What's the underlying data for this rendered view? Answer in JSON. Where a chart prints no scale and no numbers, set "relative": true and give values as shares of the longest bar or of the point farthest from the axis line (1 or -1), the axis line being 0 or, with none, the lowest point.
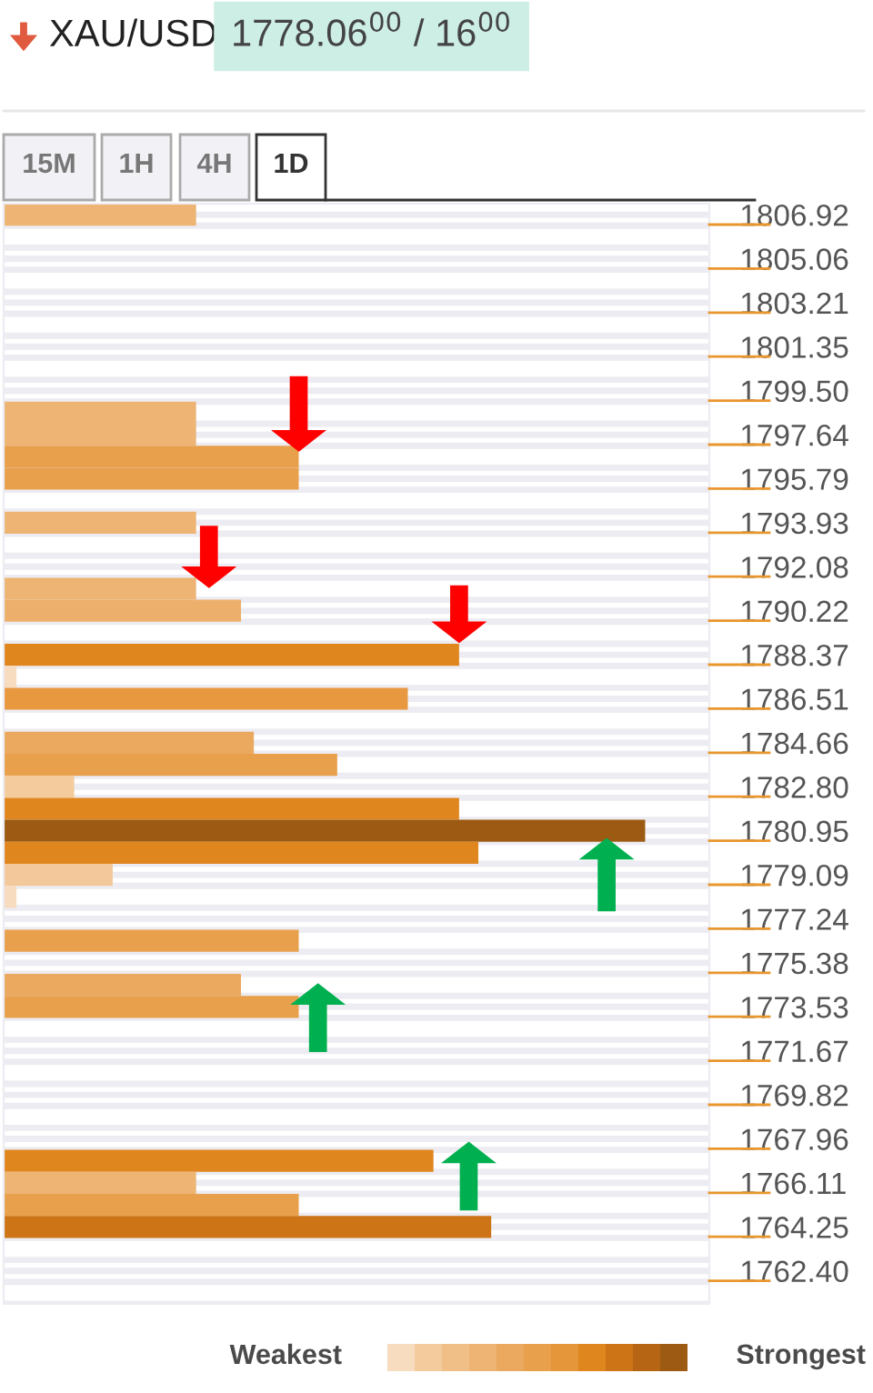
{
  "chart_data": {
    "type": "bar",
    "orientation": "horizontal",
    "relative": true,
    "title": "XAU/USD",
    "subtitle": "1778.06$^{00}$ / 16$^{00}$",
    "categories": [
      "1806.92",
      null,
      "1805.06",
      null,
      "1803.21",
      null,
      "1801.35",
      null,
      "1799.50",
      null,
      "1797.64",
      null,
      "1795.79",
      null,
      "1793.93",
      null,
      "1792.08",
      null,
      "1790.22",
      null,
      "1788.37",
      null,
      "1786.51",
      null,
      "1784.66",
      null,
      "1782.80",
      null,
      "1780.95",
      null,
      "1779.09",
      null,
      "1777.24",
      null,
      "1775.38",
      null,
      "1773.53",
      null,
      "1771.67",
      null,
      "1769.82",
      null,
      "1767.96",
      null,
      "1766.11",
      null,
      "1764.25",
      null,
      "1762.40",
      null
    ],
    "values": [
      0.3,
      null,
      null,
      null,
      null,
      null,
      null,
      null,
      null,
      0.3,
      0.3,
      0.46,
      0.46,
      null,
      0.3,
      null,
      null,
      0.3,
      0.37,
      null,
      0.71,
      0.02,
      0.63,
      null,
      0.39,
      0.52,
      0.11,
      0.71,
      1,
      0.74,
      0.17,
      0.02,
      null,
      0.46,
      null,
      0.37,
      0.46,
      null,
      null,
      null,
      null,
      null,
      null,
      0.67,
      0.3,
      0.46,
      0.76,
      null,
      null,
      null
    ],
    "colors": [
      "#edb473",
      null,
      null,
      null,
      null,
      null,
      null,
      null,
      null,
      "#edb473",
      "#edb473",
      "#e8a04c",
      "#e8a04c",
      null,
      "#edb473",
      null,
      null,
      "#edb473",
      "#ecb06c",
      null,
      "#e0861f",
      "#f7dcc0",
      "#e8983f",
      null,
      "#eaa95f",
      "#e8a04c",
      "#f3cb9c",
      "#e0861f",
      "#9c5a12",
      "#e0861f",
      "#f3c89a",
      "#f7dcc0",
      null,
      "#e8a04c",
      null,
      "#eaa95f",
      "#e8a04c",
      null,
      null,
      null,
      null,
      null,
      null,
      "#e0861f",
      "#edb473",
      "#e8a04c",
      "#cc7416",
      null,
      null,
      null
    ],
    "grid": "y",
    "annotations": [
      "15M",
      "1H",
      "4H",
      "1D",
      "Weakest",
      "Strongest"
    ]
  }
}
